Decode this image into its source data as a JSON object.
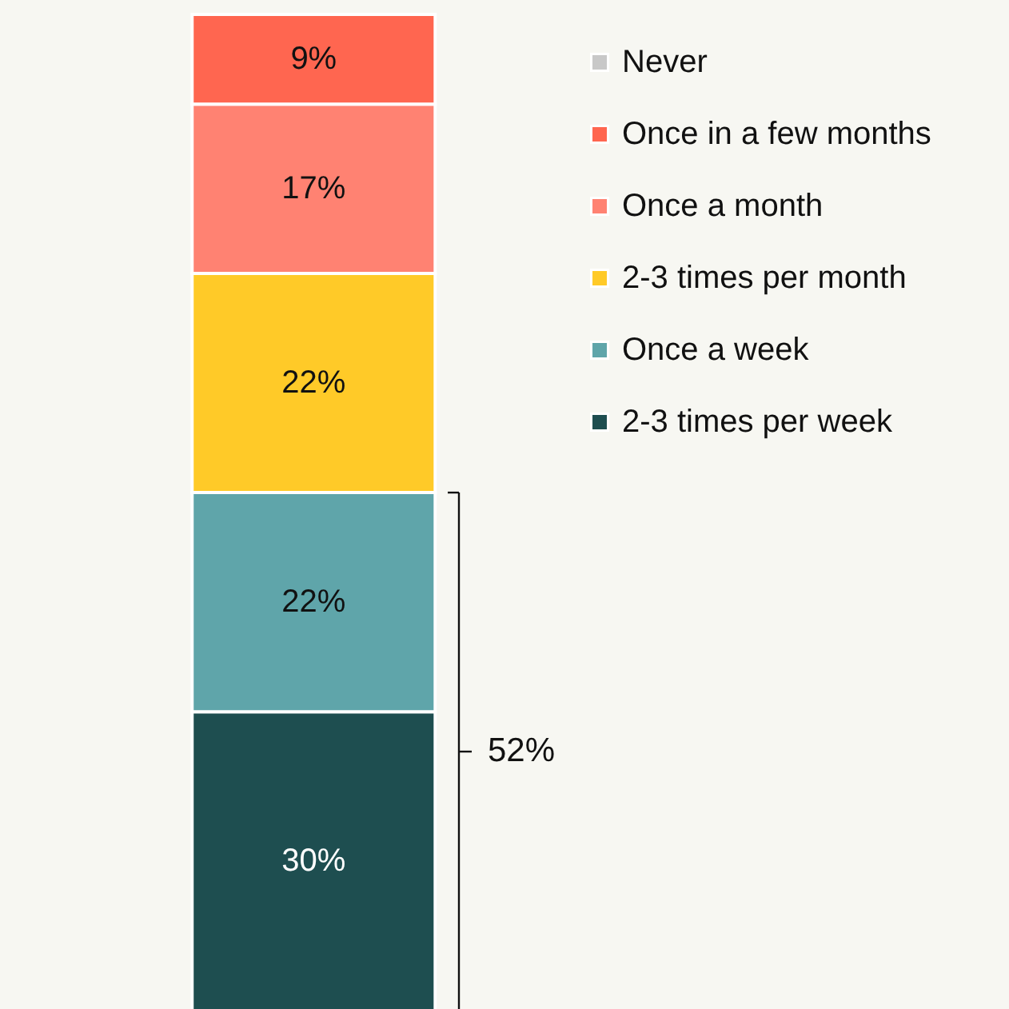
{
  "chart_data": {
    "type": "bar",
    "stacked": true,
    "categories": [
      null
    ],
    "legend": "top right",
    "tick_labels": false,
    "series": [
      {
        "name": "2-3 times per week",
        "color": "#1e4e50",
        "values": [
          30
        ],
        "value_labels": [
          "30%"
        ]
      },
      {
        "name": "Once a week",
        "color": "#5fa5aa",
        "values": [
          22
        ],
        "value_labels": [
          "22%"
        ]
      },
      {
        "name": "2-3 times per month",
        "color": "#ffca28",
        "values": [
          22
        ],
        "value_labels": [
          "22%"
        ]
      },
      {
        "name": "Once a month",
        "color": "#ff8272",
        "values": [
          17
        ],
        "value_labels": [
          "17%"
        ]
      },
      {
        "name": "Once in a few months",
        "color": "#ff6650",
        "values": [
          9
        ],
        "value_labels": [
          "9%"
        ]
      },
      {
        "name": "Never",
        "color": "#c8c8c8",
        "values": [
          0
        ],
        "value_labels": [
          null
        ]
      }
    ],
    "annotations": [
      "52%"
    ]
  }
}
